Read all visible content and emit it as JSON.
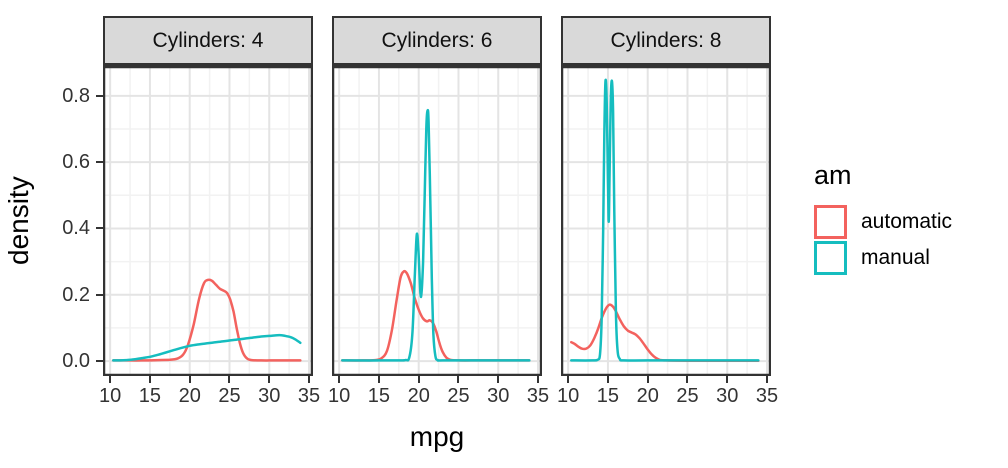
{
  "chart_data": {
    "type": "line",
    "subtype": "density",
    "title": "",
    "x": {
      "label": "mpg",
      "domain": [
        9.1,
        35.5
      ],
      "ticks": [
        10,
        15,
        20,
        25,
        30,
        35
      ],
      "tick_labels": [
        "10",
        "15",
        "20",
        "25",
        "30",
        "35"
      ],
      "minor_ticks": [
        12.5,
        17.5,
        22.5,
        27.5,
        32.5
      ]
    },
    "y": {
      "label": "density",
      "domain": [
        -0.045,
        0.89
      ],
      "ticks": [
        0,
        0.2,
        0.4,
        0.6,
        0.8
      ],
      "tick_labels": [
        "0.0",
        "0.2",
        "0.4",
        "0.6",
        "0.8"
      ],
      "minor_ticks": [
        0.1,
        0.3,
        0.5,
        0.7
      ]
    },
    "grid": {
      "major_color": "#e4e4e4",
      "minor_color": "#f2f2f2",
      "on": true
    },
    "strip": {
      "fill": "#d9d9d9",
      "border_color": "#333333"
    },
    "panel": {
      "background": "#ffffff",
      "border_color": "#333333"
    },
    "legend": {
      "title": "am",
      "position": "right",
      "entries": [
        {
          "label": "automatic",
          "color": "#f3625e"
        },
        {
          "label": "manual",
          "color": "#15bdbf"
        }
      ]
    },
    "facets": [
      {
        "label": "Cylinders: 4",
        "series": [
          {
            "name": "automatic",
            "color": "#f3625e",
            "points": [
              [
                10.4,
                0.002
              ],
              [
                12,
                0.002
              ],
              [
                14,
                0.002
              ],
              [
                16,
                0.003
              ],
              [
                17.5,
                0.004
              ],
              [
                18.5,
                0.008
              ],
              [
                19.2,
                0.02
              ],
              [
                19.8,
                0.05
              ],
              [
                20.5,
                0.11
              ],
              [
                21.2,
                0.19
              ],
              [
                21.8,
                0.235
              ],
              [
                22.3,
                0.245
              ],
              [
                22.8,
                0.242
              ],
              [
                23.3,
                0.23
              ],
              [
                23.8,
                0.218
              ],
              [
                24.3,
                0.212
              ],
              [
                24.7,
                0.205
              ],
              [
                25.1,
                0.185
              ],
              [
                25.5,
                0.15
              ],
              [
                25.9,
                0.1
              ],
              [
                26.3,
                0.055
              ],
              [
                26.7,
                0.025
              ],
              [
                27.2,
                0.008
              ],
              [
                27.8,
                0.003
              ],
              [
                29,
                0.002
              ],
              [
                31,
                0.002
              ],
              [
                33.9,
                0.002
              ]
            ]
          },
          {
            "name": "manual",
            "color": "#15bdbf",
            "points": [
              [
                10.4,
                0.002
              ],
              [
                12,
                0.003
              ],
              [
                13,
                0.005
              ],
              [
                14,
                0.009
              ],
              [
                15,
                0.013
              ],
              [
                16,
                0.019
              ],
              [
                17,
                0.026
              ],
              [
                18,
                0.033
              ],
              [
                19,
                0.04
              ],
              [
                20,
                0.046
              ],
              [
                21,
                0.05
              ],
              [
                22,
                0.053
              ],
              [
                23,
                0.056
              ],
              [
                24,
                0.059
              ],
              [
                25,
                0.062
              ],
              [
                26,
                0.065
              ],
              [
                27,
                0.068
              ],
              [
                28,
                0.071
              ],
              [
                29,
                0.074
              ],
              [
                30,
                0.076
              ],
              [
                31,
                0.078
              ],
              [
                31.5,
                0.078
              ],
              [
                32,
                0.076
              ],
              [
                32.7,
                0.072
              ],
              [
                33.3,
                0.065
              ],
              [
                33.9,
                0.055
              ]
            ]
          }
        ]
      },
      {
        "label": "Cylinders: 6",
        "series": [
          {
            "name": "automatic",
            "color": "#f3625e",
            "points": [
              [
                10.4,
                0.002
              ],
              [
                13,
                0.002
              ],
              [
                14.5,
                0.003
              ],
              [
                15.3,
                0.008
              ],
              [
                16,
                0.03
              ],
              [
                16.6,
                0.09
              ],
              [
                17.2,
                0.18
              ],
              [
                17.7,
                0.25
              ],
              [
                18.1,
                0.27
              ],
              [
                18.5,
                0.265
              ],
              [
                19,
                0.235
              ],
              [
                19.5,
                0.19
              ],
              [
                20,
                0.155
              ],
              [
                20.5,
                0.13
              ],
              [
                21,
                0.12
              ],
              [
                21.4,
                0.123
              ],
              [
                21.8,
                0.115
              ],
              [
                22.2,
                0.09
              ],
              [
                22.6,
                0.055
              ],
              [
                23,
                0.028
              ],
              [
                23.5,
                0.01
              ],
              [
                24,
                0.004
              ],
              [
                25,
                0.002
              ],
              [
                28,
                0.002
              ],
              [
                33.9,
                0.002
              ]
            ]
          },
          {
            "name": "manual",
            "color": "#15bdbf",
            "points": [
              [
                10.4,
                0.002
              ],
              [
                17,
                0.002
              ],
              [
                18.3,
                0.003
              ],
              [
                18.8,
                0.01
              ],
              [
                19.2,
                0.08
              ],
              [
                19.5,
                0.25
              ],
              [
                19.75,
                0.38
              ],
              [
                19.95,
                0.34
              ],
              [
                20.2,
                0.21
              ],
              [
                20.35,
                0.205
              ],
              [
                20.55,
                0.3
              ],
              [
                20.75,
                0.5
              ],
              [
                20.95,
                0.7
              ],
              [
                21.1,
                0.755
              ],
              [
                21.25,
                0.72
              ],
              [
                21.45,
                0.5
              ],
              [
                21.65,
                0.25
              ],
              [
                21.85,
                0.08
              ],
              [
                22.1,
                0.015
              ],
              [
                22.4,
                0.003
              ],
              [
                23,
                0.002
              ],
              [
                28,
                0.002
              ],
              [
                33.9,
                0.002
              ]
            ]
          }
        ]
      },
      {
        "label": "Cylinders: 8",
        "series": [
          {
            "name": "automatic",
            "color": "#f3625e",
            "points": [
              [
                10.4,
                0.057
              ],
              [
                10.8,
                0.052
              ],
              [
                11.3,
                0.043
              ],
              [
                11.8,
                0.037
              ],
              [
                12.3,
                0.038
              ],
              [
                12.8,
                0.048
              ],
              [
                13.3,
                0.07
              ],
              [
                13.8,
                0.1
              ],
              [
                14.3,
                0.135
              ],
              [
                14.8,
                0.16
              ],
              [
                15.2,
                0.17
              ],
              [
                15.6,
                0.165
              ],
              [
                16,
                0.15
              ],
              [
                16.5,
                0.125
              ],
              [
                17,
                0.105
              ],
              [
                17.5,
                0.092
              ],
              [
                18,
                0.086
              ],
              [
                18.5,
                0.08
              ],
              [
                19,
                0.068
              ],
              [
                19.5,
                0.052
              ],
              [
                20,
                0.035
              ],
              [
                20.5,
                0.02
              ],
              [
                21,
                0.01
              ],
              [
                21.5,
                0.004
              ],
              [
                22.3,
                0.002
              ],
              [
                25,
                0.001
              ],
              [
                30,
                0.001
              ],
              [
                33.9,
                0.001
              ]
            ]
          },
          {
            "name": "manual",
            "color": "#15bdbf",
            "points": [
              [
                10.4,
                0.002
              ],
              [
                13,
                0.002
              ],
              [
                13.7,
                0.004
              ],
              [
                14,
                0.02
              ],
              [
                14.2,
                0.12
              ],
              [
                14.4,
                0.4
              ],
              [
                14.55,
                0.7
              ],
              [
                14.7,
                0.845
              ],
              [
                14.85,
                0.78
              ],
              [
                15,
                0.55
              ],
              [
                15.1,
                0.42
              ],
              [
                15.2,
                0.55
              ],
              [
                15.35,
                0.78
              ],
              [
                15.5,
                0.845
              ],
              [
                15.65,
                0.75
              ],
              [
                15.8,
                0.45
              ],
              [
                16,
                0.15
              ],
              [
                16.2,
                0.035
              ],
              [
                16.5,
                0.006
              ],
              [
                17,
                0.002
              ],
              [
                20,
                0.002
              ],
              [
                27,
                0.002
              ],
              [
                33.9,
                0.002
              ]
            ]
          }
        ]
      }
    ]
  }
}
